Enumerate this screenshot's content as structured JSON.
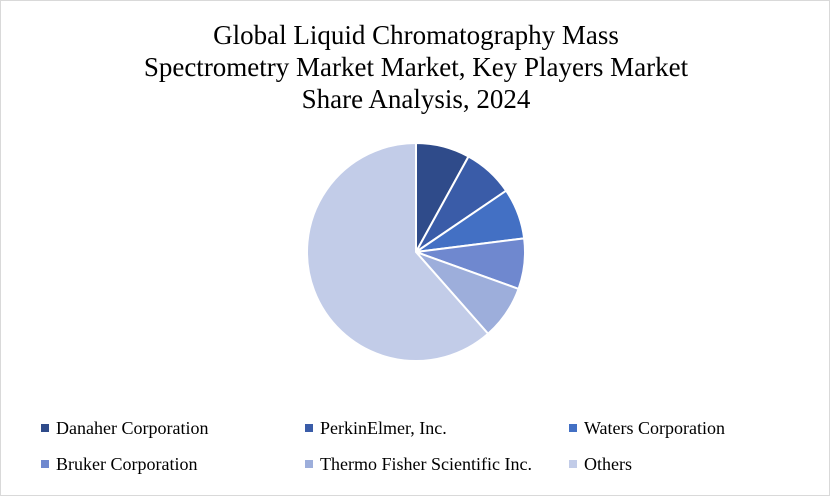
{
  "title_lines": [
    "Global Liquid Chromatography Mass",
    "Spectrometry Market Market, Key Players Market",
    "Share Analysis, 2024"
  ],
  "chart_data": {
    "type": "pie",
    "title": "Global Liquid Chromatography Mass Spectrometry Market Market, Key Players Market Share Analysis, 2024",
    "legend_position": "bottom",
    "slices": [
      {
        "label": "Danaher Corporation",
        "value": 8,
        "color": "#2f4b8a"
      },
      {
        "label": "PerkinElmer, Inc.",
        "value": 7.5,
        "color": "#3a5ca8"
      },
      {
        "label": "Waters Corporation",
        "value": 7.5,
        "color": "#4370c4"
      },
      {
        "label": "Bruker Corporation",
        "value": 7.5,
        "color": "#6f88cf"
      },
      {
        "label": "Thermo Fisher Scientific Inc.",
        "value": 8,
        "color": "#9daedb"
      },
      {
        "label": "Others",
        "value": 61.5,
        "color": "#c2cce8"
      }
    ]
  }
}
